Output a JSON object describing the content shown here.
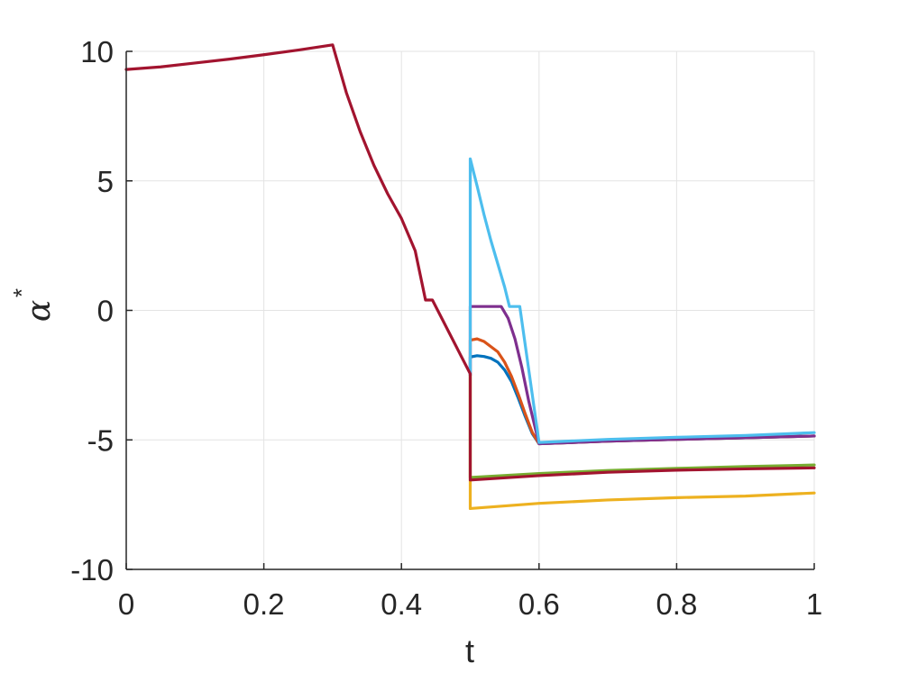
{
  "chart_data": {
    "type": "line",
    "xlabel": "t",
    "ylabel": "α",
    "ylabel_superscript": "*",
    "xlim": [
      0,
      1
    ],
    "ylim": [
      -10,
      10
    ],
    "xticks": [
      0,
      0.2,
      0.4,
      0.6,
      0.8,
      1
    ],
    "xtick_labels": [
      "0",
      "0.2",
      "0.4",
      "0.6",
      "0.8",
      "1"
    ],
    "yticks": [
      -10,
      -5,
      0,
      5,
      10
    ],
    "ytick_labels": [
      "-10",
      "-5",
      "0",
      "5",
      "10"
    ],
    "grid": true,
    "series": [
      {
        "color": "#0072BD",
        "points": [
          [
            0.5,
            -2.5
          ],
          [
            0.5,
            -1.8
          ],
          [
            0.51,
            -1.75
          ],
          [
            0.52,
            -1.78
          ],
          [
            0.53,
            -1.85
          ],
          [
            0.54,
            -2.0
          ],
          [
            0.55,
            -2.3
          ],
          [
            0.56,
            -2.75
          ],
          [
            0.57,
            -3.4
          ],
          [
            0.58,
            -4.1
          ],
          [
            0.59,
            -4.75
          ],
          [
            0.6,
            -5.15
          ],
          [
            0.7,
            -5.05
          ],
          [
            0.8,
            -4.98
          ],
          [
            0.9,
            -4.92
          ],
          [
            1.0,
            -4.85
          ]
        ]
      },
      {
        "color": "#D95319",
        "points": [
          [
            0.5,
            -2.5
          ],
          [
            0.5,
            -1.15
          ],
          [
            0.51,
            -1.1
          ],
          [
            0.52,
            -1.2
          ],
          [
            0.53,
            -1.4
          ],
          [
            0.54,
            -1.6
          ],
          [
            0.55,
            -2.0
          ],
          [
            0.56,
            -2.55
          ],
          [
            0.57,
            -3.25
          ],
          [
            0.58,
            -4.0
          ],
          [
            0.59,
            -4.7
          ],
          [
            0.6,
            -5.15
          ],
          [
            0.7,
            -5.05
          ],
          [
            0.8,
            -4.98
          ],
          [
            0.9,
            -4.92
          ],
          [
            1.0,
            -4.85
          ]
        ]
      },
      {
        "color": "#EDB120",
        "points": [
          [
            0.5,
            -2.5
          ],
          [
            0.5,
            -7.65
          ],
          [
            0.6,
            -7.45
          ],
          [
            0.7,
            -7.32
          ],
          [
            0.8,
            -7.23
          ],
          [
            0.9,
            -7.17
          ],
          [
            1.0,
            -7.05
          ]
        ]
      },
      {
        "color": "#7E2F8E",
        "points": [
          [
            0.5,
            -2.5
          ],
          [
            0.5,
            0.15
          ],
          [
            0.545,
            0.15
          ],
          [
            0.555,
            -0.3
          ],
          [
            0.565,
            -1.1
          ],
          [
            0.575,
            -2.2
          ],
          [
            0.585,
            -3.5
          ],
          [
            0.595,
            -4.6
          ],
          [
            0.6,
            -5.15
          ],
          [
            0.7,
            -5.05
          ],
          [
            0.8,
            -4.98
          ],
          [
            0.9,
            -4.92
          ],
          [
            1.0,
            -4.85
          ]
        ]
      },
      {
        "color": "#77AC30",
        "points": [
          [
            0.5,
            -2.5
          ],
          [
            0.5,
            -6.45
          ],
          [
            0.6,
            -6.3
          ],
          [
            0.7,
            -6.18
          ],
          [
            0.8,
            -6.1
          ],
          [
            0.9,
            -6.03
          ],
          [
            1.0,
            -5.97
          ]
        ]
      },
      {
        "color": "#4DBEEE",
        "points": [
          [
            0.5,
            -2.5
          ],
          [
            0.5,
            5.85
          ],
          [
            0.51,
            4.8
          ],
          [
            0.52,
            3.7
          ],
          [
            0.53,
            2.7
          ],
          [
            0.54,
            1.8
          ],
          [
            0.55,
            0.9
          ],
          [
            0.557,
            0.15
          ],
          [
            0.572,
            0.15
          ],
          [
            0.6,
            -5.1
          ],
          [
            0.7,
            -4.98
          ],
          [
            0.8,
            -4.9
          ],
          [
            0.9,
            -4.83
          ],
          [
            1.0,
            -4.72
          ]
        ]
      },
      {
        "color": "#A2142F",
        "points": [
          [
            0,
            9.3
          ],
          [
            0.05,
            9.4
          ],
          [
            0.1,
            9.55
          ],
          [
            0.15,
            9.7
          ],
          [
            0.2,
            9.87
          ],
          [
            0.25,
            10.05
          ],
          [
            0.3,
            10.25
          ],
          [
            0.32,
            8.4
          ],
          [
            0.34,
            6.9
          ],
          [
            0.36,
            5.6
          ],
          [
            0.38,
            4.5
          ],
          [
            0.4,
            3.55
          ],
          [
            0.42,
            2.3
          ],
          [
            0.435,
            0.4
          ],
          [
            0.445,
            0.4
          ],
          [
            0.5,
            -2.45
          ],
          [
            0.5,
            -6.55
          ],
          [
            0.6,
            -6.38
          ],
          [
            0.7,
            -6.25
          ],
          [
            0.8,
            -6.17
          ],
          [
            0.9,
            -6.12
          ],
          [
            1.0,
            -6.08
          ]
        ]
      }
    ]
  }
}
